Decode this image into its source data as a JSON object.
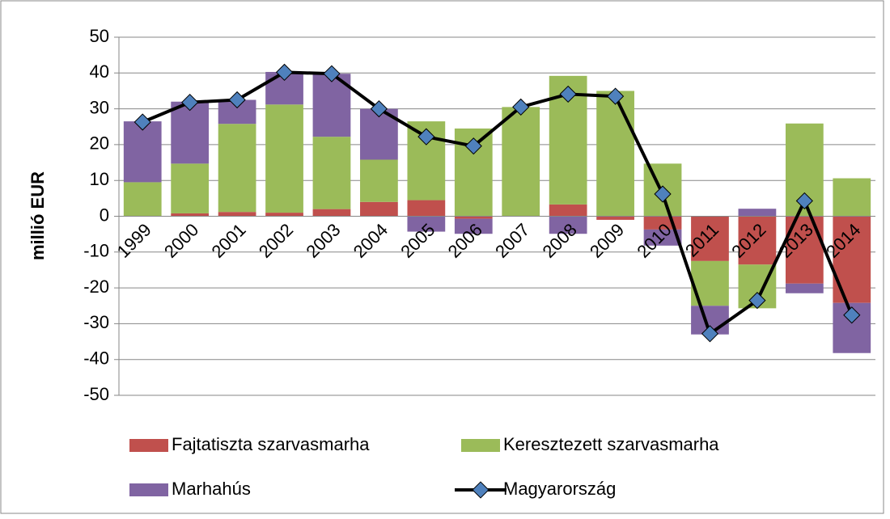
{
  "chart_data": {
    "type": "stacked_bar_line",
    "y_label": "millió EUR",
    "categories": [
      "1999",
      "2000",
      "2001",
      "2002",
      "2003",
      "2004",
      "2005",
      "2006",
      "2007",
      "2008",
      "2009",
      "2010",
      "2011",
      "2012",
      "2013",
      "2014"
    ],
    "series": [
      {
        "name": "Fajtatiszta szarvasmarha",
        "color": "#c0504d",
        "kind": "bar",
        "values": [
          0,
          0.8,
          1.2,
          1,
          2,
          4,
          4.5,
          -0.7,
          0,
          3.3,
          -1,
          -3.7,
          -12.5,
          -13.5,
          -18.8,
          -24.2
        ]
      },
      {
        "name": "Keresztezett szarvasmarha",
        "color": "#9bbb59",
        "kind": "bar",
        "values": [
          9.5,
          13.9,
          24.6,
          30.2,
          20.2,
          11.8,
          22,
          24.5,
          30.5,
          35.9,
          35,
          14.7,
          -12.5,
          -12.2,
          25.9,
          10.6
        ]
      },
      {
        "name": "Marhahús",
        "color": "#8064a2",
        "kind": "bar",
        "values": [
          17,
          17.3,
          6.7,
          9.1,
          17.6,
          14.2,
          -4.3,
          -4.2,
          0,
          -4.9,
          0,
          -4.5,
          -8,
          2.1,
          -2.7,
          -14
        ]
      },
      {
        "name": "Magyarország",
        "color": "#000000",
        "marker_color": "#4f81bd",
        "kind": "line",
        "values": [
          26.3,
          31.8,
          32.5,
          40.2,
          39.8,
          30,
          22.2,
          19.6,
          30.5,
          34.1,
          33.5,
          6.2,
          -32.8,
          -23.5,
          4.3,
          -27.6
        ]
      }
    ],
    "ylim": [
      -50,
      50
    ],
    "yticks": [
      -50,
      -40,
      -30,
      -20,
      -10,
      0,
      10,
      20,
      30,
      40,
      50
    ],
    "grid": true
  }
}
